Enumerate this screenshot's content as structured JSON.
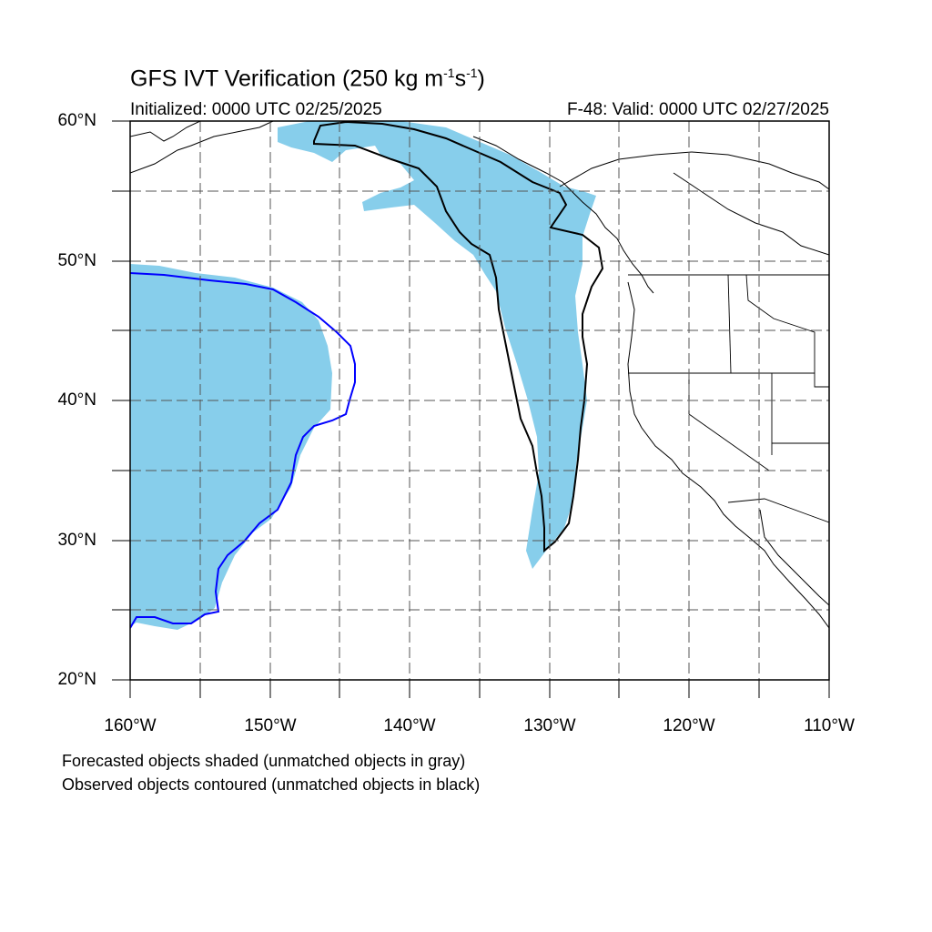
{
  "title": {
    "main": "GFS IVT Verification (250 kg m",
    "exp1": "-1",
    "mid": "s",
    "exp2": "-1",
    "close": ")"
  },
  "subtitle_left": "Initialized: 0000 UTC 02/25/2025",
  "subtitle_right": "F-48: Valid: 0000 UTC 02/27/2025",
  "lat_labels": [
    "60°N",
    "50°N",
    "40°N",
    "30°N",
    "20°N"
  ],
  "lon_labels": [
    "160°W",
    "150°W",
    "140°W",
    "130°W",
    "120°W",
    "110°W"
  ],
  "footer": {
    "line1": "Forecasted objects shaded (unmatched objects in gray)",
    "line2": "Observed objects contoured (unmatched objects in black)"
  },
  "map": {
    "lon_range": [
      -160,
      -110
    ],
    "lat_range": [
      20,
      60
    ],
    "grid_lon_step": 5,
    "grid_lat_step": 5,
    "grid": "dashed",
    "colors": {
      "forecast_fill": "#87ceeb",
      "matched_observed_contour": "#0000ff",
      "unmatched_observed_contour": "#000000",
      "coastline": "#000000"
    }
  }
}
